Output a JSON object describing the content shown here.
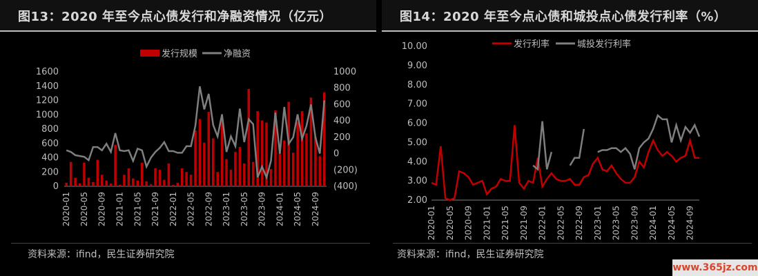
{
  "chart_data": [
    {
      "type": "bar",
      "title": "图13：2020 年至今点心债发行和净融资情况（亿元）",
      "source": "资料来源：ifind，民生证券研究院",
      "x": [
        "2020-01",
        "2020-02",
        "2020-03",
        "2020-04",
        "2020-05",
        "2020-06",
        "2020-07",
        "2020-08",
        "2020-09",
        "2020-10",
        "2020-11",
        "2020-12",
        "2021-01",
        "2021-02",
        "2021-03",
        "2021-04",
        "2021-05",
        "2021-06",
        "2021-07",
        "2021-08",
        "2021-09",
        "2021-10",
        "2021-11",
        "2021-12",
        "2022-01",
        "2022-02",
        "2022-03",
        "2022-04",
        "2022-05",
        "2022-06",
        "2022-07",
        "2022-08",
        "2022-09",
        "2022-10",
        "2022-11",
        "2022-12",
        "2023-01",
        "2023-02",
        "2023-03",
        "2023-04",
        "2023-05",
        "2023-06",
        "2023-07",
        "2023-08",
        "2023-09",
        "2023-10",
        "2023-11",
        "2023-12",
        "2024-01",
        "2024-02",
        "2024-03",
        "2024-04",
        "2024-05",
        "2024-06",
        "2024-07",
        "2024-08",
        "2024-09",
        "2024-10",
        "2024-11"
      ],
      "xtick_labels": [
        "2020-01",
        "2020-05",
        "2020-09",
        "2021-01",
        "2021-05",
        "2021-09",
        "2022-01",
        "2022-05",
        "2022-09",
        "2023-01",
        "2023-05",
        "2023-09",
        "2024-01",
        "2024-05",
        "2024-09"
      ],
      "series": [
        {
          "name": "发行规模",
          "type": "bar",
          "axis": "left",
          "color": "#c00000",
          "values": [
            50,
            340,
            120,
            40,
            330,
            120,
            60,
            370,
            160,
            80,
            40,
            580,
            20,
            160,
            250,
            110,
            80,
            330,
            70,
            30,
            250,
            230,
            90,
            320,
            20,
            50,
            250,
            200,
            160,
            780,
            940,
            610,
            1040,
            670,
            200,
            960,
            380,
            230,
            480,
            550,
            320,
            1360,
            340,
            1050,
            920,
            890,
            240,
            1060,
            470,
            640,
            1180,
            470,
            900,
            1050,
            740,
            1240,
            690,
            420,
            1310
          ]
        },
        {
          "name": "净融资",
          "type": "line",
          "axis": "right",
          "color": "#7f7f7f",
          "values": [
            40,
            20,
            -20,
            -30,
            -40,
            -80,
            80,
            80,
            40,
            120,
            20,
            250,
            40,
            30,
            40,
            -90,
            60,
            40,
            -160,
            -50,
            20,
            70,
            140,
            30,
            30,
            10,
            10,
            90,
            90,
            340,
            820,
            540,
            730,
            350,
            210,
            480,
            20,
            210,
            90,
            550,
            140,
            420,
            360,
            -290,
            -160,
            -290,
            -90,
            500,
            0,
            570,
            120,
            200,
            480,
            180,
            340,
            600,
            200,
            0,
            650
          ]
        }
      ],
      "left_axis": {
        "ylim": [
          0,
          1600
        ],
        "ticks": [
          "0",
          "200",
          "400",
          "600",
          "800",
          "1000",
          "1200",
          "1400",
          "1600"
        ]
      },
      "right_axis": {
        "ylim": [
          -400,
          1000
        ],
        "ticks": [
          "(400)",
          "(200)",
          "0",
          "200",
          "400",
          "600",
          "800",
          "1000"
        ]
      },
      "legend_position": "top"
    },
    {
      "type": "line",
      "title": "图14：2020 年至今点心债和城投点心债发行利率（%）",
      "source": "资料来源：ifind，民生证券研究院",
      "x": [
        "2020-01",
        "2020-02",
        "2020-03",
        "2020-04",
        "2020-05",
        "2020-06",
        "2020-07",
        "2020-08",
        "2020-09",
        "2020-10",
        "2020-11",
        "2020-12",
        "2021-01",
        "2021-02",
        "2021-03",
        "2021-04",
        "2021-05",
        "2021-06",
        "2021-07",
        "2021-08",
        "2021-09",
        "2021-10",
        "2021-11",
        "2021-12",
        "2022-01",
        "2022-02",
        "2022-03",
        "2022-04",
        "2022-05",
        "2022-06",
        "2022-07",
        "2022-08",
        "2022-09",
        "2022-10",
        "2022-11",
        "2022-12",
        "2023-01",
        "2023-02",
        "2023-03",
        "2023-04",
        "2023-05",
        "2023-06",
        "2023-07",
        "2023-08",
        "2023-09",
        "2023-10",
        "2023-11",
        "2023-12",
        "2024-01",
        "2024-02",
        "2024-03",
        "2024-04",
        "2024-05",
        "2024-06",
        "2024-07",
        "2024-08",
        "2024-09",
        "2024-10",
        "2024-11"
      ],
      "xtick_labels": [
        "2020-01",
        "2020-05",
        "2020-09",
        "2021-01",
        "2021-05",
        "2021-09",
        "2022-01",
        "2022-05",
        "2022-09",
        "2023-01",
        "2023-05",
        "2023-09",
        "2024-01",
        "2024-05",
        "2024-09"
      ],
      "ylim": [
        2.0,
        10.0
      ],
      "yticks": [
        "2.00",
        "3.00",
        "4.00",
        "5.00",
        "6.00",
        "7.00",
        "8.00",
        "9.00",
        "10.00"
      ],
      "series": [
        {
          "name": "发行利率",
          "color": "#c00000",
          "values": [
            2.9,
            2.8,
            4.8,
            2.1,
            2.0,
            2.1,
            3.5,
            3.4,
            3.2,
            2.8,
            2.9,
            3.0,
            2.3,
            2.6,
            2.7,
            3.1,
            3.0,
            3.0,
            5.9,
            2.9,
            2.6,
            3.0,
            2.9,
            4.2,
            2.7,
            3.1,
            3.4,
            3.1,
            3.0,
            3.0,
            3.1,
            2.8,
            2.8,
            3.2,
            3.3,
            3.9,
            4.2,
            3.6,
            3.5,
            3.8,
            3.4,
            3.1,
            2.9,
            2.9,
            3.2,
            4.0,
            3.7,
            4.5,
            5.1,
            4.6,
            4.3,
            4.5,
            4.3,
            4.0,
            4.2,
            4.3,
            5.1,
            4.2,
            4.2
          ]
        },
        {
          "name": "城投发行利率",
          "color": "#7f7f7f",
          "values": [
            null,
            null,
            null,
            null,
            null,
            null,
            null,
            null,
            null,
            null,
            null,
            null,
            null,
            null,
            null,
            null,
            null,
            null,
            null,
            null,
            null,
            null,
            3.8,
            3.6,
            6.1,
            3.6,
            4.5,
            null,
            null,
            null,
            3.8,
            4.2,
            4.2,
            5.7,
            null,
            null,
            4.5,
            4.6,
            4.6,
            4.7,
            4.7,
            4.5,
            4.7,
            4.4,
            3.6,
            4.7,
            5.0,
            5.2,
            5.7,
            6.4,
            6.2,
            6.2,
            5.0,
            5.9,
            5.1,
            5.8,
            5.5,
            5.9,
            5.3
          ]
        }
      ],
      "legend_position": "top"
    }
  ],
  "watermark": "www.365jz.com"
}
